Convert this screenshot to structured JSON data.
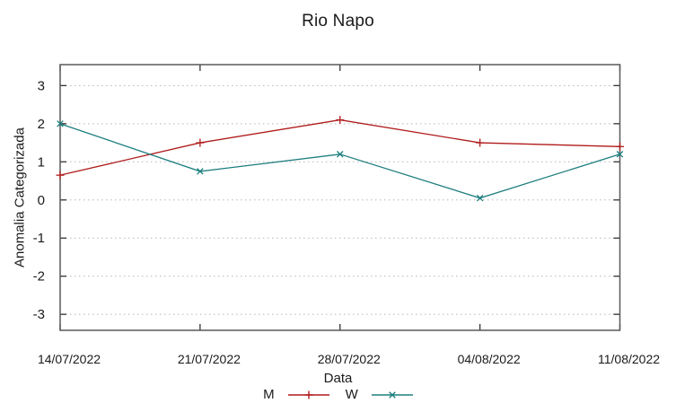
{
  "chart_data": {
    "type": "line",
    "title": "Rio Napo",
    "xlabel": "Data",
    "ylabel": "Anomalia Categorizada",
    "categories": [
      "14/07/2022",
      "21/07/2022",
      "28/07/2022",
      "04/08/2022",
      "11/08/2022"
    ],
    "series": [
      {
        "name": "M",
        "marker": "plus",
        "color": "#b01b1b",
        "values": [
          0.65,
          1.5,
          2.1,
          1.5,
          1.4
        ]
      },
      {
        "name": "W",
        "marker": "cross",
        "color": "#1e7e7e",
        "values": [
          2.0,
          0.75,
          1.2,
          0.05,
          1.2
        ]
      }
    ],
    "yticks": [
      3,
      2,
      1,
      0,
      -1,
      -2,
      -3
    ],
    "ylim": [
      -3.42,
      3.55
    ],
    "grid": "horizontal-dotted",
    "legend_position": "bottom-center",
    "colors": {
      "grid": "#b5b5b5",
      "border": "#595959",
      "tick": "#333333",
      "text": "#1a1a1a"
    }
  }
}
